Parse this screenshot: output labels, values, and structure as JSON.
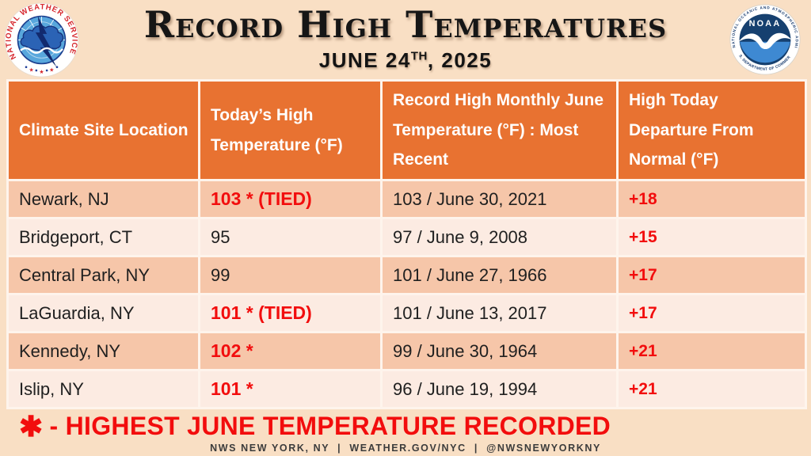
{
  "colors": {
    "page_bg": "#F9DFC4",
    "table_header_bg": "#E87231",
    "row_dark": "#F6C6A9",
    "row_light": "#FCEBE2",
    "grid_line": "#FEF4EC",
    "accent_red": "#F20D0D",
    "text_dark": "#202020"
  },
  "banner": {
    "title": "Record High Temperatures",
    "date": {
      "prefix": "JUNE 24",
      "ordinal": "TH",
      "suffix": ", 2025"
    },
    "nws_logo": {
      "ring_text": "NATIONAL WEATHER SERVICE"
    },
    "noaa_logo": {
      "ring_top": "NATIONAL OCEANIC AND ATMOSPHERIC ADMINISTRATION",
      "ring_bottom": "U.S. DEPARTMENT OF COMMERCE",
      "label": "NOAA"
    }
  },
  "table": {
    "columns": [
      "Climate Site Location",
      "Today’s High Temperature (°F)",
      "Record High Monthly June Temperature (°F) : Most Recent",
      "High Today Departure From Normal (°F)"
    ],
    "rows": [
      {
        "location": "Newark, NJ",
        "today_high": "103 * (TIED)",
        "today_high_red": true,
        "record": "103 / June 30, 2021",
        "departure": "+18"
      },
      {
        "location": "Bridgeport, CT",
        "today_high": "95",
        "today_high_red": false,
        "record": "97 / June 9, 2008",
        "departure": "+15"
      },
      {
        "location": "Central Park, NY",
        "today_high": "99",
        "today_high_red": false,
        "record": "101 / June 27, 1966",
        "departure": "+17"
      },
      {
        "location": "LaGuardia, NY",
        "today_high": "101 * (TIED)",
        "today_high_red": true,
        "record": "101 / June 13, 2017",
        "departure": "+17"
      },
      {
        "location": "Kennedy, NY",
        "today_high": "102 *",
        "today_high_red": true,
        "record": "99 / June 30, 1964",
        "departure": "+21"
      },
      {
        "location": "Islip, NY",
        "today_high": "101 *",
        "today_high_red": true,
        "record": "96 / June 19, 1994",
        "departure": "+21"
      }
    ]
  },
  "footer": {
    "note_symbol": "✱",
    "note_text": "- HIGHEST JUNE TEMPERATURE RECORDED",
    "credit": "NWS NEW YORK, NY  |  WEATHER.GOV/NYC  |  @NWSNEWYORKNY"
  },
  "chart_data": {
    "type": "table",
    "title": "Record High Temperatures",
    "subtitle": "June 24th, 2025",
    "units": "°F",
    "columns": [
      "Climate Site Location",
      "Today’s High Temperature (°F)",
      "Record High Monthly June Temperature (°F) : Most Recent",
      "High Today Departure From Normal (°F)"
    ],
    "rows": [
      [
        "Newark, NJ",
        "103 * (TIED)",
        "103 / June 30, 2021",
        "+18"
      ],
      [
        "Bridgeport, CT",
        "95",
        "97 / June 9, 2008",
        "+15"
      ],
      [
        "Central Park, NY",
        "99",
        "101 / June 27, 1966",
        "+17"
      ],
      [
        "LaGuardia, NY",
        "101 * (TIED)",
        "101 / June 13, 2017",
        "+17"
      ],
      [
        "Kennedy, NY",
        "102 *",
        "99 / June 30, 1964",
        "+21"
      ],
      [
        "Islip, NY",
        "101 *",
        "96 / June 19, 1994",
        "+21"
      ]
    ],
    "today_high_values": [
      103,
      95,
      99,
      101,
      102,
      101
    ],
    "record_values": [
      103,
      97,
      101,
      101,
      99,
      96
    ],
    "departure_values": [
      18,
      15,
      17,
      17,
      21,
      21
    ],
    "footnote": "✱ - HIGHEST JUNE TEMPERATURE RECORDED",
    "source": "NWS NEW YORK, NY | WEATHER.GOV/NYC | @NWSNEWYORKNY"
  }
}
